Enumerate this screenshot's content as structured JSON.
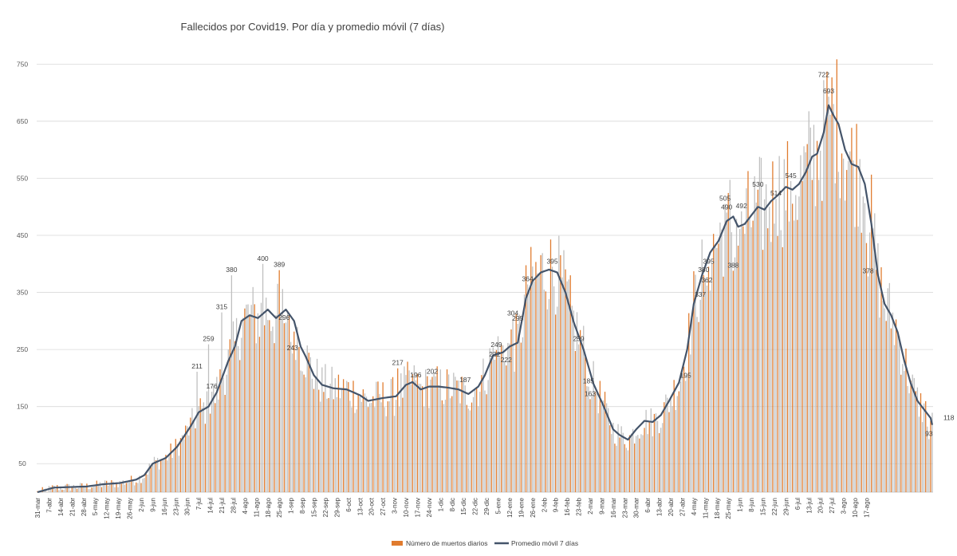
{
  "chart_data": {
    "type": "bar",
    "title": "Fallecidos por Covid19. Por día y promedio móvil (7 días)",
    "xlabel": "",
    "ylabel": "",
    "ylim": [
      0,
      800
    ],
    "yticks": [
      50,
      150,
      250,
      350,
      450,
      550,
      650,
      750
    ],
    "grid": true,
    "legend_position": "bottom",
    "start_date": "2020-03-31",
    "num_days": 505,
    "x_tick_labels": [
      "31-mar",
      "7-abr",
      "14-abr",
      "21-abr",
      "28-abr",
      "5-may",
      "12-may",
      "19-may",
      "26-may",
      "2-jun",
      "9-jun",
      "16-jun",
      "23-jun",
      "30-jun",
      "7-jul",
      "14-jul",
      "21-jul",
      "28-jul",
      "4-ago",
      "11-ago",
      "18-ago",
      "25-ago",
      "1-sep",
      "8-sep",
      "15-sep",
      "22-sep",
      "29-sep",
      "6-oct",
      "13-oct",
      "20-oct",
      "27-oct",
      "3-nov",
      "10-nov",
      "17-nov",
      "24-nov",
      "1-dic",
      "8-dic",
      "15-dic",
      "22-dic",
      "29-dic",
      "5-ene",
      "12-ene",
      "19-ene",
      "26-ene",
      "2-feb",
      "9-feb",
      "16-feb",
      "23-feb",
      "2-mar",
      "9-mar",
      "16-mar",
      "23-mar",
      "30-mar",
      "6-abr",
      "13-abr",
      "20-abr",
      "27-abr",
      "4-may",
      "11-may",
      "18-may",
      "25-may",
      "1-jun",
      "8-jun",
      "15-jun",
      "22-jun",
      "29-jun",
      "6-jul",
      "13-jul",
      "20-jul",
      "27-jul",
      "3-ago",
      "10-ago",
      "17-ago"
    ],
    "series": [
      {
        "name": "Número de muertos diarios",
        "type": "bar",
        "highlight_color": "#E07B2E",
        "muted_color": "#BFBFBF",
        "description": "Daily deaths; one bar per day, every 3rd day highlighted in orange",
        "moving_average_anchors": [
          [
            0,
            0
          ],
          [
            10,
            8
          ],
          [
            20,
            9
          ],
          [
            30,
            10
          ],
          [
            40,
            14
          ],
          [
            50,
            16
          ],
          [
            60,
            22
          ],
          [
            65,
            30
          ],
          [
            70,
            50
          ],
          [
            78,
            60
          ],
          [
            85,
            80
          ],
          [
            93,
            115
          ],
          [
            98,
            140
          ],
          [
            104,
            150
          ],
          [
            109,
            175
          ],
          [
            116,
            230
          ],
          [
            120,
            255
          ],
          [
            124,
            300
          ],
          [
            129,
            310
          ],
          [
            134,
            305
          ],
          [
            140,
            320
          ],
          [
            145,
            305
          ],
          [
            151,
            320
          ],
          [
            156,
            300
          ],
          [
            160,
            255
          ],
          [
            163,
            238
          ],
          [
            168,
            205
          ],
          [
            173,
            188
          ],
          [
            180,
            182
          ],
          [
            188,
            180
          ],
          [
            196,
            170
          ],
          [
            201,
            160
          ],
          [
            210,
            165
          ],
          [
            218,
            168
          ],
          [
            224,
            188
          ],
          [
            228,
            193
          ],
          [
            233,
            180
          ],
          [
            238,
            185
          ],
          [
            244,
            185
          ],
          [
            250,
            183
          ],
          [
            256,
            180
          ],
          [
            262,
            172
          ],
          [
            268,
            185
          ],
          [
            272,
            205
          ],
          [
            277,
            240
          ],
          [
            283,
            245
          ],
          [
            287,
            255
          ],
          [
            292,
            262
          ],
          [
            297,
            340
          ],
          [
            301,
            370
          ],
          [
            306,
            385
          ],
          [
            311,
            390
          ],
          [
            316,
            385
          ],
          [
            321,
            350
          ],
          [
            326,
            298
          ],
          [
            332,
            250
          ],
          [
            338,
            190
          ],
          [
            344,
            152
          ],
          [
            350,
            110
          ],
          [
            354,
            100
          ],
          [
            359,
            92
          ],
          [
            364,
            110
          ],
          [
            369,
            125
          ],
          [
            374,
            123
          ],
          [
            379,
            135
          ],
          [
            384,
            160
          ],
          [
            390,
            192
          ],
          [
            395,
            250
          ],
          [
            399,
            330
          ],
          [
            404,
            380
          ],
          [
            409,
            420
          ],
          [
            414,
            440
          ],
          [
            419,
            475
          ],
          [
            423,
            483
          ],
          [
            426,
            465
          ],
          [
            430,
            470
          ],
          [
            434,
            485
          ],
          [
            438,
            500
          ],
          [
            442,
            495
          ],
          [
            446,
            510
          ],
          [
            450,
            520
          ],
          [
            455,
            535
          ],
          [
            459,
            530
          ],
          [
            463,
            540
          ],
          [
            467,
            560
          ],
          [
            471,
            588
          ],
          [
            474,
            593
          ],
          [
            478,
            630
          ],
          [
            481,
            678
          ],
          [
            484,
            660
          ],
          [
            487,
            645
          ],
          [
            491,
            600
          ],
          [
            495,
            575
          ],
          [
            499,
            570
          ],
          [
            503,
            540
          ],
          [
            507,
            470
          ],
          [
            511,
            380
          ],
          [
            515,
            330
          ],
          [
            519,
            310
          ],
          [
            523,
            280
          ],
          [
            527,
            230
          ],
          [
            531,
            190
          ],
          [
            535,
            160
          ],
          [
            539,
            145
          ],
          [
            543,
            130
          ],
          [
            544,
            118
          ]
        ],
        "data_labels": [
          {
            "day": 97,
            "value": 211
          },
          {
            "day": 104,
            "value": 259
          },
          {
            "day": 106,
            "value": 176
          },
          {
            "day": 112,
            "value": 315
          },
          {
            "day": 118,
            "value": 380
          },
          {
            "day": 137,
            "value": 400
          },
          {
            "day": 147,
            "value": 389
          },
          {
            "day": 150,
            "value": 296
          },
          {
            "day": 155,
            "value": 243
          },
          {
            "day": 219,
            "value": 217
          },
          {
            "day": 230,
            "value": 196
          },
          {
            "day": 240,
            "value": 202
          },
          {
            "day": 260,
            "value": 187
          },
          {
            "day": 278,
            "value": 232
          },
          {
            "day": 279,
            "value": 249
          },
          {
            "day": 285,
            "value": 222
          },
          {
            "day": 292,
            "value": 295
          },
          {
            "day": 289,
            "value": 304
          },
          {
            "day": 298,
            "value": 364
          },
          {
            "day": 313,
            "value": 395
          },
          {
            "day": 329,
            "value": 259
          },
          {
            "day": 335,
            "value": 185
          },
          {
            "day": 336,
            "value": 163
          },
          {
            "day": 394,
            "value": 195
          },
          {
            "day": 403,
            "value": 337
          },
          {
            "day": 405,
            "value": 380
          },
          {
            "day": 407,
            "value": 362
          },
          {
            "day": 408,
            "value": 395
          },
          {
            "day": 418,
            "value": 505
          },
          {
            "day": 419,
            "value": 490
          },
          {
            "day": 423,
            "value": 388
          },
          {
            "day": 428,
            "value": 492
          },
          {
            "day": 438,
            "value": 530
          },
          {
            "day": 449,
            "value": 514
          },
          {
            "day": 458,
            "value": 545
          },
          {
            "day": 478,
            "value": 722
          },
          {
            "day": 481,
            "value": 693
          },
          {
            "day": 505,
            "value": 378
          },
          {
            "day": 542,
            "value": 93
          }
        ]
      },
      {
        "name": "Promedio móvil 7 días",
        "type": "line",
        "color": "#44546A",
        "end_value_label": 118
      }
    ]
  }
}
